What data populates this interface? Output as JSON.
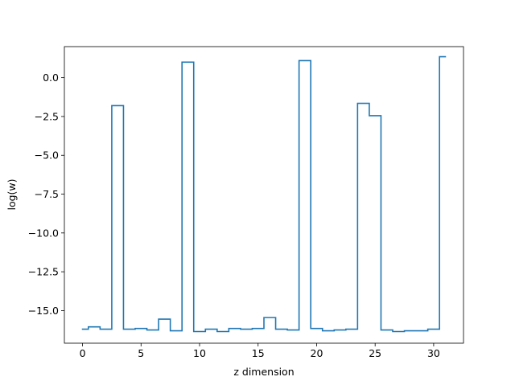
{
  "chart_data": {
    "type": "line",
    "drawstyle": "steps-mid",
    "title": "",
    "xlabel": "z dimension",
    "ylabel": "log(w)",
    "xlim": [
      -1.55,
      32.55
    ],
    "ylim": [
      -17.1,
      2.0
    ],
    "xticks": [
      0,
      5,
      10,
      15,
      20,
      25,
      30
    ],
    "yticks": [
      0.0,
      -2.5,
      -5.0,
      -7.5,
      -10.0,
      -12.5,
      -15.0
    ],
    "xtick_labels": [
      "0",
      "5",
      "10",
      "15",
      "20",
      "25",
      "30"
    ],
    "ytick_labels": [
      "0.0",
      "−2.5",
      "−5.0",
      "−7.5",
      "−10.0",
      "−12.5",
      "−15.0"
    ],
    "grid": false,
    "legend": "none",
    "line_color": "#1f77b4",
    "x": [
      0,
      1,
      2,
      3,
      4,
      5,
      6,
      7,
      8,
      9,
      10,
      11,
      12,
      13,
      14,
      15,
      16,
      17,
      18,
      19,
      20,
      21,
      22,
      23,
      24,
      25,
      26,
      27,
      28,
      29,
      30,
      31
    ],
    "values": [
      -16.2,
      -16.05,
      -16.2,
      -1.8,
      -16.2,
      -16.15,
      -16.25,
      -15.55,
      -16.3,
      1.0,
      -16.35,
      -16.2,
      -16.35,
      -16.15,
      -16.2,
      -16.15,
      -15.45,
      -16.2,
      -16.25,
      1.1,
      -16.15,
      -16.3,
      -16.25,
      -16.2,
      -1.65,
      -2.45,
      -16.25,
      -16.35,
      -16.3,
      -16.3,
      -16.2,
      1.35
    ]
  }
}
